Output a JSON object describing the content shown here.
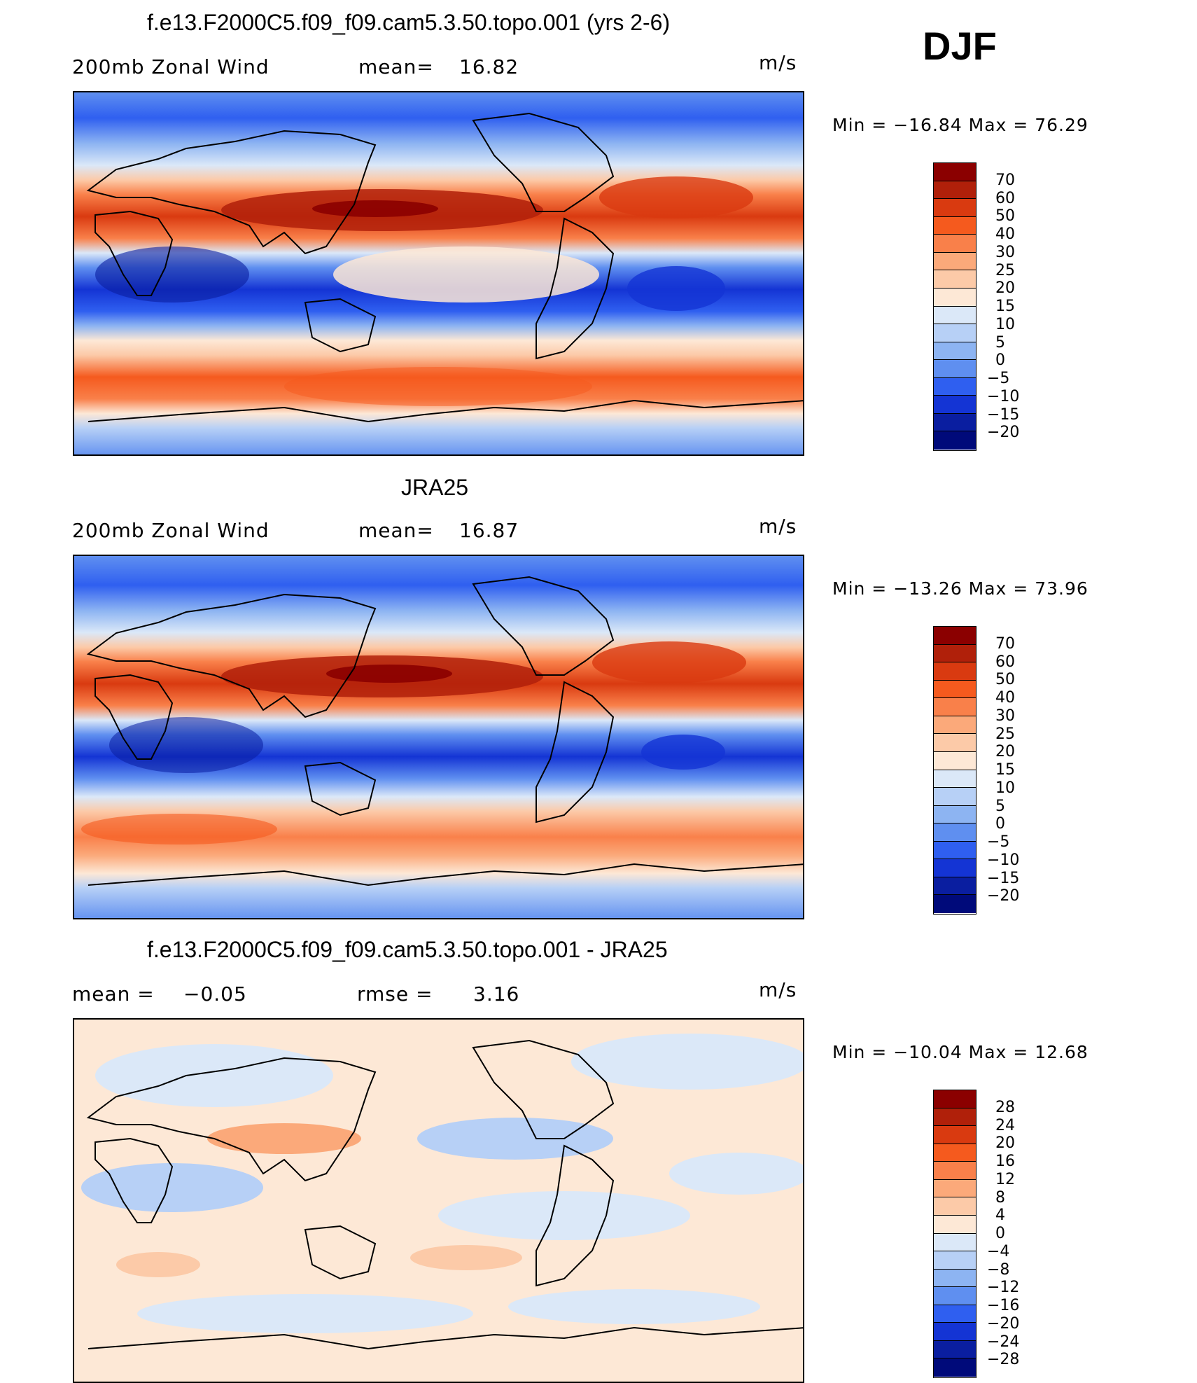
{
  "season": "DJF",
  "panels": [
    {
      "title": "f.e13.F2000C5.f09_f09.cam5.3.50.topo.001 (yrs 2-6)",
      "left_label": "200mb Zonal Wind",
      "mid_label": "mean=",
      "mid_value": "16.82",
      "units": "m/s",
      "minmax": "Min = −16.84 Max = 76.29",
      "levels": [
        "70",
        "60",
        "50",
        "40",
        "30",
        "25",
        "20",
        "15",
        "10",
        "5",
        "0",
        "−5",
        "−10",
        "−15",
        "−20"
      ]
    },
    {
      "title": "JRA25",
      "left_label": "200mb Zonal Wind",
      "mid_label": "mean=",
      "mid_value": "16.87",
      "units": "m/s",
      "minmax": "Min = −13.26 Max = 73.96",
      "levels": [
        "70",
        "60",
        "50",
        "40",
        "30",
        "25",
        "20",
        "15",
        "10",
        "5",
        "0",
        "−5",
        "−10",
        "−15",
        "−20"
      ]
    },
    {
      "title": "f.e13.F2000C5.f09_f09.cam5.3.50.topo.001 - JRA25",
      "left_label": "mean =",
      "left_value": "−0.05",
      "mid_label": "rmse =",
      "mid_value": "3.16",
      "units": "m/s",
      "minmax": "Min = −10.04 Max = 12.68",
      "levels": [
        "28",
        "24",
        "20",
        "16",
        "12",
        "8",
        "4",
        "0",
        "−4",
        "−8",
        "−12",
        "−16",
        "−20",
        "−24",
        "−28"
      ]
    }
  ],
  "colorbar_colors": [
    "#8b0000",
    "#b0200a",
    "#d93a10",
    "#f55a1e",
    "#f9804a",
    "#fba97a",
    "#fccaa8",
    "#fde8d6",
    "#dbe8f8",
    "#b7d0f6",
    "#8db4f2",
    "#5f8ff0",
    "#2f5ff0",
    "#1434d4",
    "#0a1ea0",
    "#000a7a"
  ],
  "chart_data": [
    {
      "type": "heatmap",
      "title": "f.e13.F2000C5.f09_f09.cam5.3.50.topo.001 (yrs 2-6)",
      "variable": "200mb Zonal Wind",
      "units": "m/s",
      "mean": 16.82,
      "min": -16.84,
      "max": 76.29,
      "contour_levels": [
        -20,
        -15,
        -10,
        -5,
        0,
        5,
        10,
        15,
        20,
        25,
        30,
        40,
        50,
        60,
        70
      ]
    },
    {
      "type": "heatmap",
      "title": "JRA25",
      "variable": "200mb Zonal Wind",
      "units": "m/s",
      "mean": 16.87,
      "min": -13.26,
      "max": 73.96,
      "contour_levels": [
        -20,
        -15,
        -10,
        -5,
        0,
        5,
        10,
        15,
        20,
        25,
        30,
        40,
        50,
        60,
        70
      ]
    },
    {
      "type": "heatmap",
      "title": "f.e13.F2000C5.f09_f09.cam5.3.50.topo.001 - JRA25",
      "units": "m/s",
      "mean": -0.05,
      "rmse": 3.16,
      "min": -10.04,
      "max": 12.68,
      "contour_levels": [
        -28,
        -24,
        -20,
        -16,
        -12,
        -8,
        -4,
        0,
        4,
        8,
        12,
        16,
        20,
        24,
        28
      ]
    }
  ]
}
